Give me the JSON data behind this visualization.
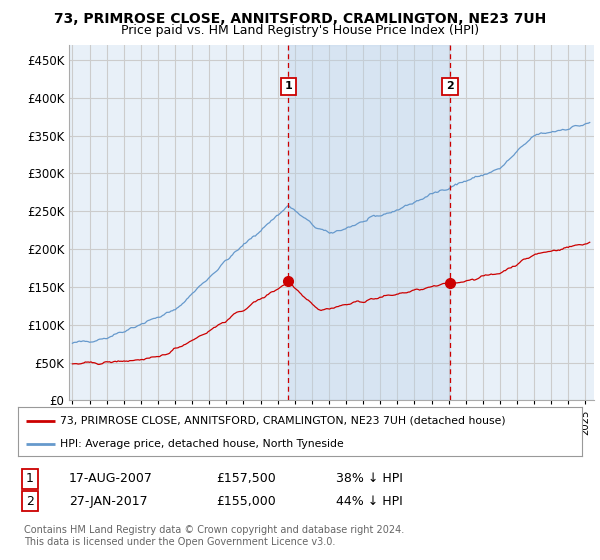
{
  "title1": "73, PRIMROSE CLOSE, ANNITSFORD, CRAMLINGTON, NE23 7UH",
  "title2": "Price paid vs. HM Land Registry's House Price Index (HPI)",
  "ylim": [
    0,
    470000
  ],
  "yticks": [
    0,
    50000,
    100000,
    150000,
    200000,
    250000,
    300000,
    350000,
    400000,
    450000
  ],
  "ytick_labels": [
    "£0",
    "£50K",
    "£100K",
    "£150K",
    "£200K",
    "£250K",
    "£300K",
    "£350K",
    "£400K",
    "£450K"
  ],
  "background_color": "#ffffff",
  "plot_bg_color": "#e8f0f8",
  "grid_color": "#cccccc",
  "red_color": "#cc0000",
  "blue_color": "#6699cc",
  "shade_color": "#ccddf0",
  "marker1_year": 2007.63,
  "marker1_price": 157500,
  "marker2_year": 2017.08,
  "marker2_price": 155000,
  "legend_line1": "73, PRIMROSE CLOSE, ANNITSFORD, CRAMLINGTON, NE23 7UH (detached house)",
  "legend_line2": "HPI: Average price, detached house, North Tyneside",
  "table_row1": [
    "1",
    "17-AUG-2007",
    "£157,500",
    "38% ↓ HPI"
  ],
  "table_row2": [
    "2",
    "27-JAN-2017",
    "£155,000",
    "44% ↓ HPI"
  ],
  "footer": "Contains HM Land Registry data © Crown copyright and database right 2024.\nThis data is licensed under the Open Government Licence v3.0.",
  "title_fontsize": 10,
  "subtitle_fontsize": 9,
  "axis_fontsize": 8.5
}
